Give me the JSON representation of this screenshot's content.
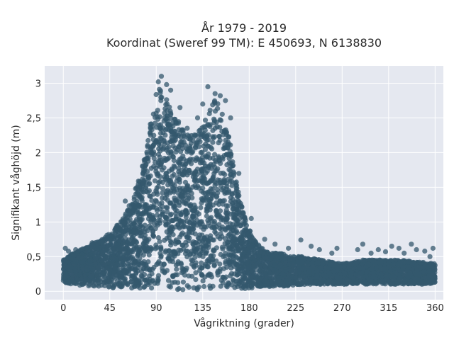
{
  "chart_data": {
    "type": "scatter",
    "title_lines": [
      "År 1979 - 2019",
      "Koordinat (Sweref 99 TM): E 450693, N 6138830"
    ],
    "xlabel": "Vågriktning (grader)",
    "ylabel": "Signifikant våghöjd (m)",
    "xlim": [
      -18,
      368
    ],
    "ylim": [
      -0.12,
      3.25
    ],
    "xticks": [
      0,
      45,
      90,
      135,
      180,
      225,
      270,
      315,
      360
    ],
    "xtick_labels": [
      "0",
      "45",
      "90",
      "135",
      "180",
      "225",
      "270",
      "315",
      "360"
    ],
    "yticks": [
      0,
      0.5,
      1,
      1.5,
      2,
      2.5,
      3
    ],
    "ytick_labels": [
      "0",
      "0,5",
      "1",
      "1,5",
      "2",
      "2,5",
      "3"
    ],
    "grid": true,
    "marker_color": "#34586e",
    "plot_bg": "#e5e8f0",
    "envelope": {
      "direction": [
        0,
        10,
        20,
        30,
        40,
        50,
        60,
        70,
        80,
        85,
        90,
        95,
        100,
        105,
        110,
        115,
        120,
        125,
        130,
        135,
        140,
        145,
        150,
        155,
        160,
        165,
        170,
        175,
        180,
        185,
        190,
        200,
        210,
        220,
        230,
        240,
        250,
        260,
        270,
        280,
        290,
        300,
        310,
        320,
        330,
        340,
        350,
        360
      ],
      "lower": [
        0.12,
        0.1,
        0.08,
        0.07,
        0.06,
        0.05,
        0.05,
        0.04,
        0.03,
        0.03,
        0.02,
        0.02,
        0.02,
        0.02,
        0.02,
        0.02,
        0.02,
        0.02,
        0.02,
        0.02,
        0.02,
        0.02,
        0.02,
        0.02,
        0.02,
        0.02,
        0.03,
        0.03,
        0.04,
        0.05,
        0.05,
        0.06,
        0.07,
        0.08,
        0.09,
        0.1,
        0.1,
        0.1,
        0.1,
        0.1,
        0.1,
        0.1,
        0.1,
        0.1,
        0.1,
        0.1,
        0.1,
        0.12
      ],
      "upper": [
        0.45,
        0.55,
        0.62,
        0.7,
        0.78,
        0.9,
        1.1,
        1.45,
        2.0,
        2.5,
        2.85,
        2.95,
        2.8,
        2.6,
        2.5,
        2.35,
        2.3,
        2.25,
        2.3,
        2.4,
        2.55,
        2.75,
        2.75,
        2.6,
        2.3,
        1.8,
        1.4,
        1.1,
        0.9,
        0.75,
        0.65,
        0.55,
        0.55,
        0.5,
        0.5,
        0.48,
        0.45,
        0.42,
        0.4,
        0.42,
        0.45,
        0.45,
        0.45,
        0.45,
        0.45,
        0.42,
        0.42,
        0.4
      ]
    },
    "outliers": [
      [
        2,
        0.62
      ],
      [
        5,
        0.58
      ],
      [
        12,
        0.6
      ],
      [
        28,
        0.7
      ],
      [
        38,
        0.72
      ],
      [
        52,
        0.95
      ],
      [
        60,
        1.3
      ],
      [
        70,
        1.48
      ],
      [
        78,
        1.6
      ],
      [
        92,
        3.02
      ],
      [
        95,
        3.1
      ],
      [
        100,
        2.98
      ],
      [
        104,
        2.9
      ],
      [
        113,
        2.65
      ],
      [
        120,
        2.35
      ],
      [
        130,
        2.5
      ],
      [
        135,
        2.7
      ],
      [
        140,
        2.95
      ],
      [
        147,
        2.85
      ],
      [
        152,
        2.82
      ],
      [
        157,
        2.75
      ],
      [
        162,
        2.5
      ],
      [
        170,
        1.7
      ],
      [
        182,
        1.05
      ],
      [
        195,
        0.75
      ],
      [
        205,
        0.68
      ],
      [
        218,
        0.62
      ],
      [
        230,
        0.74
      ],
      [
        240,
        0.65
      ],
      [
        248,
        0.6
      ],
      [
        260,
        0.55
      ],
      [
        265,
        0.62
      ],
      [
        285,
        0.6
      ],
      [
        290,
        0.68
      ],
      [
        298,
        0.55
      ],
      [
        305,
        0.6
      ],
      [
        312,
        0.57
      ],
      [
        318,
        0.65
      ],
      [
        325,
        0.62
      ],
      [
        330,
        0.55
      ],
      [
        337,
        0.68
      ],
      [
        342,
        0.6
      ],
      [
        350,
        0.58
      ],
      [
        355,
        0.5
      ],
      [
        358,
        0.62
      ]
    ]
  }
}
